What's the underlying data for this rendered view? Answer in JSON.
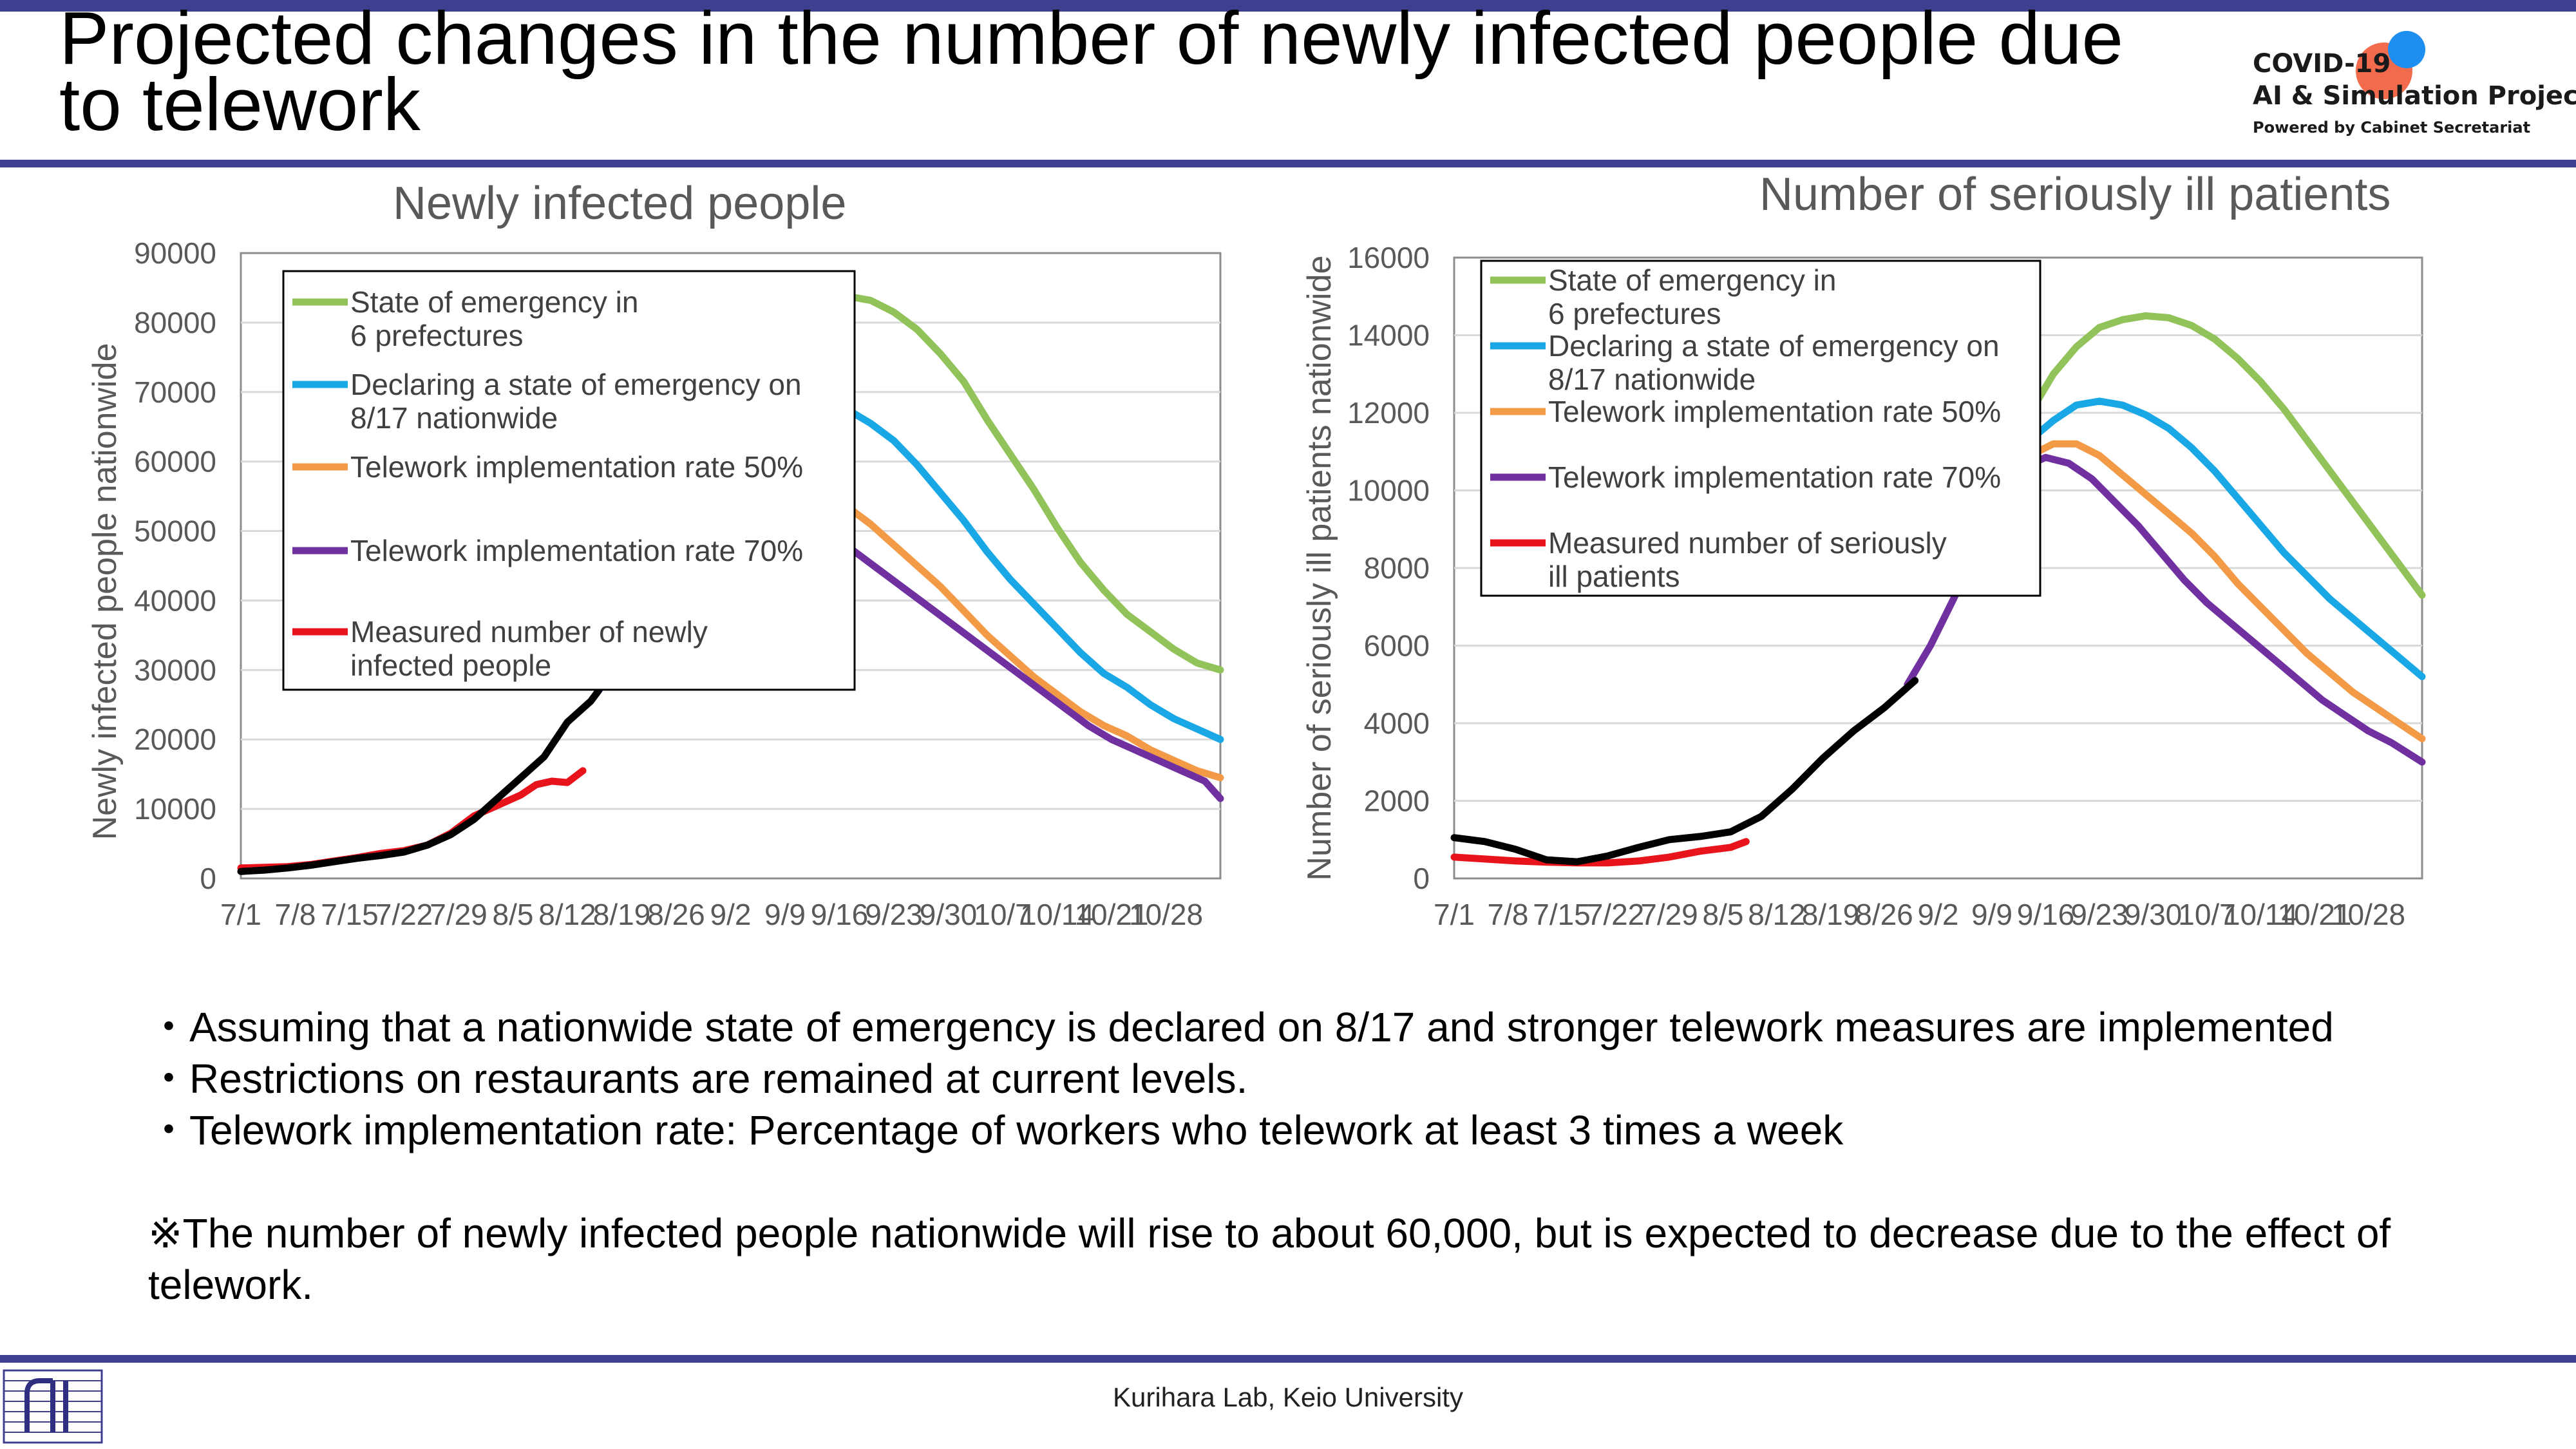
{
  "slide": {
    "title": "Projected changes in the number of newly infected people due to telework",
    "logo": {
      "line1": "COVID-19",
      "line2": "AI & Simulation Project",
      "line3": "Powered by Cabinet Secretariat"
    },
    "bullets": [
      "・Assuming that a nationwide state of emergency is declared on 8/17 and stronger telework measures are implemented",
      "・Restrictions on restaurants are remained at current levels.",
      "・Telework implementation rate: Percentage of workers who telework at least 3 times a week"
    ],
    "footnote": "※The number of newly infected people nationwide will rise to about 60,000, but is expected to decrease due to the effect of telework.",
    "footer": "Kurihara Lab, Keio University",
    "colors": {
      "accent_rule": "#3f3f8f",
      "green": "#92c35a",
      "blue": "#1aa7e6",
      "orange": "#f39a46",
      "purple": "#7030a0",
      "red": "#e8141c",
      "black": "#000000"
    }
  },
  "chart_data": [
    {
      "type": "line",
      "title": "Newly infected people",
      "xlabel": "",
      "ylabel": "Newly infected people nationwide",
      "ylim": [
        0,
        90000
      ],
      "yticks": [
        "0",
        "10000",
        "20000",
        "30000",
        "40000",
        "50000",
        "60000",
        "70000",
        "80000",
        "90000"
      ],
      "xlim": [
        0,
        126
      ],
      "categories": [
        "7/1",
        "7/8",
        "7/15",
        "7/22",
        "7/29",
        "8/5",
        "8/12",
        "8/19",
        "8/26",
        "9/2",
        "9/9",
        "9/16",
        "9/23",
        "9/30",
        "10/7",
        "10/14",
        "10/21",
        "10/28"
      ],
      "xtick_offsets": [
        0,
        7,
        14,
        21,
        28,
        35,
        42,
        49,
        56,
        63,
        70,
        77,
        84,
        91,
        98,
        105,
        112,
        119
      ],
      "legend_position": "upper-left",
      "series": [
        {
          "name": "State of emergency in 6 prefectures",
          "color": "#92c35a",
          "x": [
            75,
            78,
            81,
            84,
            87,
            90,
            93,
            96,
            99,
            102,
            105,
            108,
            111,
            114,
            117,
            120,
            123,
            126
          ],
          "y": [
            83500,
            83800,
            83200,
            81500,
            79000,
            75500,
            71500,
            66000,
            61000,
            56000,
            50500,
            45500,
            41500,
            38000,
            35500,
            33000,
            31000,
            30000
          ]
        },
        {
          "name": "Declaring a state of emergency on 8/17 nationwide",
          "color": "#1aa7e6",
          "x": [
            75,
            78,
            81,
            84,
            87,
            90,
            93,
            96,
            99,
            102,
            105,
            108,
            111,
            114,
            117,
            120,
            123,
            126
          ],
          "y": [
            68500,
            67500,
            65500,
            63000,
            59500,
            55500,
            51500,
            47000,
            43000,
            39500,
            36000,
            32500,
            29500,
            27500,
            25000,
            23000,
            21500,
            20000
          ]
        },
        {
          "name": "Telework implementation rate 50%",
          "color": "#f39a46",
          "x": [
            75,
            78,
            81,
            84,
            87,
            90,
            93,
            96,
            99,
            102,
            105,
            108,
            111,
            114,
            117,
            120,
            123,
            126
          ],
          "y": [
            56000,
            53500,
            51000,
            48000,
            45000,
            42000,
            38500,
            35000,
            32000,
            29000,
            26500,
            24000,
            22000,
            20500,
            18500,
            17000,
            15500,
            14500
          ]
        },
        {
          "name": "Telework implementation rate 70%",
          "color": "#7030a0",
          "x": [
            46,
            49,
            52,
            55,
            58,
            61,
            64,
            67,
            70,
            73,
            76,
            79,
            82,
            85,
            88,
            91,
            94,
            97,
            100,
            103,
            106,
            109,
            112,
            115,
            118,
            121,
            124,
            126
          ],
          "y": [
            27000,
            31500,
            36500,
            41000,
            45500,
            49000,
            51500,
            52500,
            52500,
            51500,
            49500,
            47000,
            44500,
            42000,
            39500,
            37000,
            34500,
            32000,
            29500,
            27000,
            24500,
            22000,
            20000,
            18500,
            17000,
            15500,
            14000,
            11500
          ]
        },
        {
          "name": "Measured number of newly infected people",
          "color": "#e8141c",
          "x": [
            0,
            3,
            6,
            9,
            12,
            15,
            18,
            21,
            24,
            27,
            30,
            33,
            36,
            38,
            40,
            42,
            44
          ],
          "y": [
            1500,
            1600,
            1700,
            2000,
            2500,
            3000,
            3600,
            4000,
            4800,
            6500,
            9000,
            10500,
            12000,
            13500,
            14000,
            13800,
            15500
          ]
        },
        {
          "name": "",
          "color": "#000000",
          "x": [
            0,
            3,
            6,
            9,
            12,
            15,
            18,
            21,
            24,
            27,
            30,
            33,
            36,
            39,
            42,
            45,
            46
          ],
          "y": [
            1000,
            1200,
            1500,
            1900,
            2400,
            2900,
            3300,
            3800,
            4800,
            6300,
            8500,
            11500,
            14500,
            17500,
            22500,
            25500,
            27000
          ]
        }
      ]
    },
    {
      "type": "line",
      "title": "Number of seriously ill patients",
      "xlabel": "",
      "ylabel": "Number of seriously ill patients nationwide",
      "ylim": [
        0,
        16000
      ],
      "yticks": [
        "0",
        "2000",
        "4000",
        "6000",
        "8000",
        "10000",
        "12000",
        "14000",
        "16000"
      ],
      "xlim": [
        0,
        126
      ],
      "categories": [
        "7/1",
        "7/8",
        "7/15",
        "7/22",
        "7/29",
        "8/5",
        "8/12",
        "8/19",
        "8/26",
        "9/2",
        "9/9",
        "9/16",
        "9/23",
        "9/30",
        "10/7",
        "10/14",
        "10/21",
        "10/28"
      ],
      "xtick_offsets": [
        0,
        7,
        14,
        21,
        28,
        35,
        42,
        49,
        56,
        63,
        70,
        77,
        84,
        91,
        98,
        105,
        112,
        119
      ],
      "legend_position": "upper-left",
      "series": [
        {
          "name": "State of emergency in 6 prefectures",
          "color": "#92c35a",
          "x": [
            75,
            78,
            81,
            84,
            87,
            90,
            93,
            96,
            99,
            102,
            105,
            108,
            111,
            114,
            117,
            120,
            123,
            126
          ],
          "y": [
            12000,
            13000,
            13700,
            14200,
            14400,
            14500,
            14450,
            14250,
            13900,
            13400,
            12800,
            12100,
            11300,
            10500,
            9700,
            8900,
            8100,
            7300
          ]
        },
        {
          "name": "Declaring a state of emergency on 8/17 nationwide",
          "color": "#1aa7e6",
          "x": [
            75,
            78,
            81,
            84,
            87,
            90,
            93,
            96,
            99,
            102,
            105,
            108,
            111,
            114,
            117,
            120,
            123,
            126
          ],
          "y": [
            11300,
            11800,
            12200,
            12300,
            12200,
            11950,
            11600,
            11100,
            10500,
            9800,
            9100,
            8400,
            7800,
            7200,
            6700,
            6200,
            5700,
            5200
          ]
        },
        {
          "name": "Telework implementation rate 50%",
          "color": "#f39a46",
          "x": [
            75,
            78,
            81,
            84,
            87,
            90,
            93,
            96,
            99,
            102,
            105,
            108,
            111,
            114,
            117,
            120,
            123,
            126
          ],
          "y": [
            10900,
            11200,
            11200,
            10900,
            10400,
            9900,
            9400,
            8900,
            8300,
            7600,
            7000,
            6400,
            5800,
            5300,
            4800,
            4400,
            4000,
            3600
          ]
        },
        {
          "name": "Telework implementation rate 70%",
          "color": "#7030a0",
          "x": [
            59,
            62,
            65,
            68,
            71,
            74,
            77,
            80,
            83,
            86,
            89,
            92,
            95,
            98,
            101,
            104,
            107,
            110,
            113,
            116,
            119,
            122,
            126
          ],
          "y": [
            5000,
            6000,
            7200,
            8500,
            9600,
            10600,
            10850,
            10700,
            10300,
            9700,
            9100,
            8400,
            7700,
            7100,
            6600,
            6100,
            5600,
            5100,
            4600,
            4200,
            3800,
            3500,
            3000
          ]
        },
        {
          "name": "Measured number of seriously ill patients",
          "color": "#e8141c",
          "x": [
            0,
            4,
            8,
            12,
            16,
            20,
            24,
            28,
            32,
            36,
            38
          ],
          "y": [
            550,
            500,
            450,
            420,
            400,
            400,
            450,
            550,
            700,
            800,
            950
          ]
        },
        {
          "name": "",
          "color": "#000000",
          "x": [
            0,
            4,
            8,
            12,
            16,
            20,
            24,
            28,
            32,
            36,
            40,
            44,
            48,
            52,
            56,
            60
          ],
          "y": [
            1050,
            950,
            750,
            480,
            430,
            580,
            800,
            1000,
            1080,
            1200,
            1600,
            2300,
            3100,
            3800,
            4400,
            5100
          ]
        }
      ]
    }
  ]
}
